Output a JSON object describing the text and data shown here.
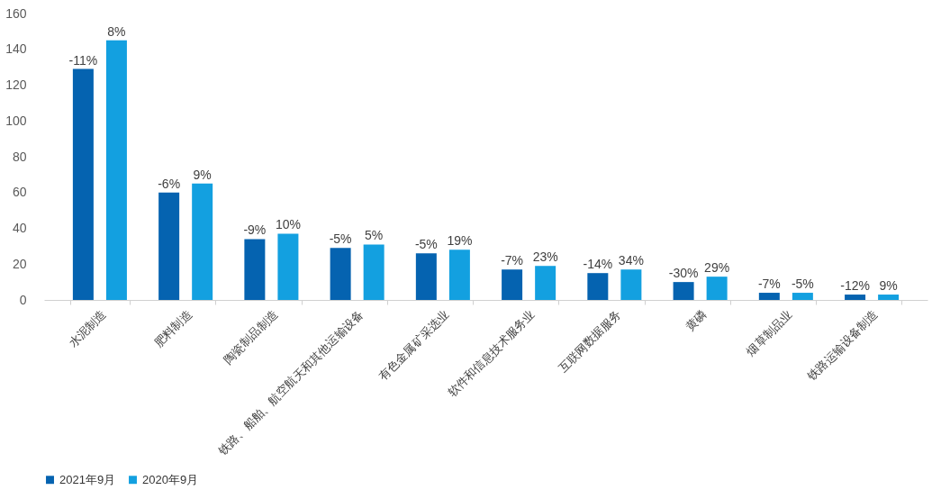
{
  "chart_data": {
    "type": "bar",
    "categories": [
      "水泥制造",
      "肥料制造",
      "陶瓷制品制造",
      "铁路、船舶、航空航天和其他运输设备",
      "有色金属矿采选业",
      "软件和信息技术服务业",
      "互联网数据服务",
      "黄磷",
      "烟草制品业",
      "铁路运输设备制造"
    ],
    "series": [
      {
        "name": "2021年9月",
        "color": "#0563b0",
        "values": [
          129,
          60,
          34,
          29,
          26,
          17,
          15,
          10,
          4,
          3
        ]
      },
      {
        "name": "2020年9月",
        "color": "#13a0e0",
        "values": [
          145,
          65,
          37,
          31,
          28,
          19,
          17,
          13,
          4,
          3
        ]
      }
    ],
    "annotations": [
      {
        "text": "-11%",
        "x": "水泥制造",
        "y": 129
      },
      {
        "text": "8%",
        "x": "水泥制造",
        "y": 145
      },
      {
        "text": "-6%",
        "x": "肥料制造",
        "y": 60
      },
      {
        "text": "9%",
        "x": "肥料制造",
        "y": 65
      },
      {
        "text": "-9%",
        "x": "陶瓷制品制造",
        "y": 34
      },
      {
        "text": "10%",
        "x": "陶瓷制品制造",
        "y": 37
      },
      {
        "text": "-5%",
        "x": "铁路、船舶、航空航天和其他运输设备",
        "y": 29
      },
      {
        "text": "5%",
        "x": "铁路、船舶、航空航天和其他运输设备",
        "y": 31
      },
      {
        "text": "-5%",
        "x": "有色金属矿采选业",
        "y": 26
      },
      {
        "text": "19%",
        "x": "有色金属矿采选业",
        "y": 28
      },
      {
        "text": "-7%",
        "x": "软件和信息技术服务业",
        "y": 17
      },
      {
        "text": "23%",
        "x": "软件和信息技术服务业",
        "y": 19
      },
      {
        "text": "-14%",
        "x": "互联网数据服务",
        "y": 15
      },
      {
        "text": "34%",
        "x": "互联网数据服务",
        "y": 17
      },
      {
        "text": "-30%",
        "x": "黄磷",
        "y": 10
      },
      {
        "text": "29%",
        "x": "黄磷",
        "y": 13
      },
      {
        "text": "-7%",
        "x": "烟草制品业",
        "y": 4
      },
      {
        "text": "-5%",
        "x": "烟草制品业",
        "y": 4
      },
      {
        "text": "-12%",
        "x": "铁路运输设备制造",
        "y": 3
      },
      {
        "text": "9%",
        "x": "铁路运输设备制造",
        "y": 3
      }
    ],
    "ylim": [
      0,
      160
    ],
    "yticks": [
      0,
      20,
      40,
      60,
      80,
      100,
      120,
      140,
      160
    ],
    "grid": false,
    "legend": "bottom"
  }
}
